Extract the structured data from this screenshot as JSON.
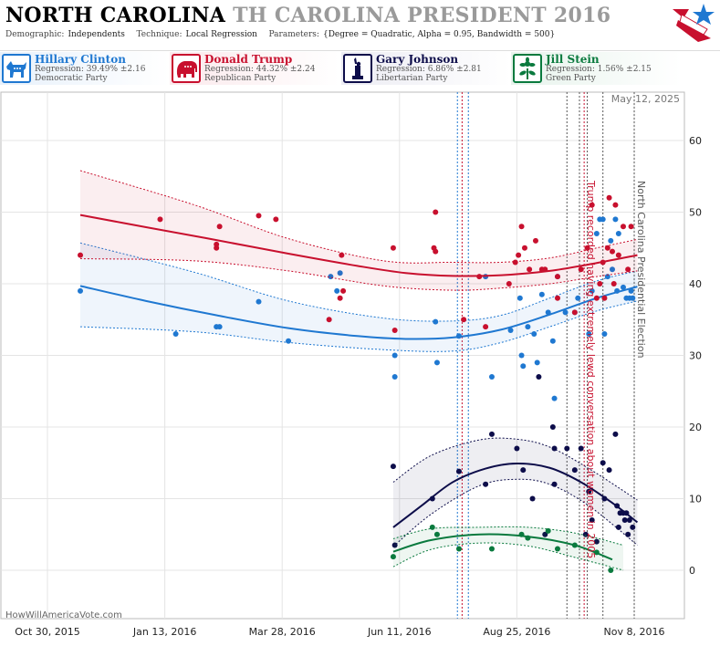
{
  "header": {
    "state": "NORTH CAROLINA",
    "subtitle": "TH CAROLINA PRESIDENT 2016",
    "demographic_label": "Demographic:",
    "demographic_value": "Independents",
    "technique_label": "Technique:",
    "technique_value": "Local Regression",
    "parameters_label": "Parameters:",
    "parameters_value": "{Degree = Quadratic, Alpha = 0.95, Bandwidth = 500}"
  },
  "candidates": [
    {
      "name": "Hillary Clinton",
      "regression": "Regression: 39.49% ±2.16",
      "party": "Democratic Party",
      "color": "#1f78d1",
      "icon": "donkey-icon",
      "bg": "#e8f1fb"
    },
    {
      "name": "Donald Trump",
      "regression": "Regression: 44.32% ±2.24",
      "party": "Republican Party",
      "color": "#c8102e",
      "icon": "elephant-icon",
      "bg": "#fbe9ec"
    },
    {
      "name": "Gary Johnson",
      "regression": "Regression: 6.86% ±2.81",
      "party": "Libertarian Party",
      "color": "#0d0d4a",
      "icon": "liberty-icon",
      "bg": "#ececf3"
    },
    {
      "name": "Jill Stein",
      "regression": "Regression: 1.56% ±2.15",
      "party": "Green Party",
      "color": "#0a7a3e",
      "icon": "flower-icon",
      "bg": "#e7f3ec"
    }
  ],
  "chart_data": {
    "type": "scatter",
    "date_label": "May 12, 2025",
    "watermark": "HowWillAmericaVote.com",
    "x_ticks": [
      "Oct 30, 2015",
      "Jan 13, 2016",
      "Mar 28, 2016",
      "Jun 11, 2016",
      "Aug 25, 2016",
      "Nov 8, 2016"
    ],
    "x_tick_dates": [
      "2015-10-30",
      "2016-01-13",
      "2016-03-28",
      "2016-06-11",
      "2016-08-25",
      "2016-11-08"
    ],
    "x_range": [
      "2015-10-30",
      "2016-11-13"
    ],
    "ylim": [
      -5,
      65
    ],
    "y_ticks": [
      0,
      10,
      20,
      30,
      40,
      50,
      60
    ],
    "annotations": [
      {
        "date": "2016-10-07",
        "text": "Trump recorded having extremely lewd conversation about women in 2005",
        "color": "#c8102e"
      },
      {
        "date": "2016-11-08",
        "text": "North Carolina Presidential Election",
        "color": "#555555"
      }
    ],
    "event_lines": [
      {
        "date": "2016-07-18",
        "color": "#1f78d1"
      },
      {
        "date": "2016-07-21",
        "color": "#c8102e"
      },
      {
        "date": "2016-07-25",
        "color": "#1f78d1"
      },
      {
        "date": "2016-09-26",
        "color": "#555555"
      },
      {
        "date": "2016-10-04",
        "color": "#555555"
      },
      {
        "date": "2016-10-07",
        "color": "#c8102e"
      },
      {
        "date": "2016-10-09",
        "color": "#555555"
      },
      {
        "date": "2016-10-19",
        "color": "#555555"
      },
      {
        "date": "2016-11-08",
        "color": "#555555"
      }
    ],
    "series": [
      {
        "name": "Hillary Clinton",
        "color": "#1f78d1",
        "band": [
          [
            "2015-11-20",
            34,
            45.7
          ],
          [
            "2016-02-01",
            33.3,
            41.6
          ],
          [
            "2016-04-01",
            31.8,
            37.6
          ],
          [
            "2016-06-01",
            30.8,
            35.2
          ],
          [
            "2016-07-15",
            30.6,
            34.8
          ],
          [
            "2016-08-15",
            31.8,
            35.6
          ],
          [
            "2016-09-15",
            34.0,
            38.0
          ],
          [
            "2016-10-15",
            36.2,
            40.4
          ],
          [
            "2016-11-10",
            37.6,
            41.8
          ]
        ],
        "line": [
          [
            "2015-11-20",
            39.7
          ],
          [
            "2016-01-01",
            37.6
          ],
          [
            "2016-02-15",
            35.6
          ],
          [
            "2016-04-01",
            33.8
          ],
          [
            "2016-05-15",
            32.7
          ],
          [
            "2016-06-15",
            32.3
          ],
          [
            "2016-07-15",
            32.5
          ],
          [
            "2016-08-15",
            33.6
          ],
          [
            "2016-09-15",
            35.7
          ],
          [
            "2016-10-15",
            38.0
          ],
          [
            "2016-11-10",
            39.6
          ]
        ],
        "points": [
          [
            "2015-11-20",
            39
          ],
          [
            "2016-01-20",
            33
          ],
          [
            "2016-02-15",
            34
          ],
          [
            "2016-02-17",
            34
          ],
          [
            "2016-03-13",
            37.5
          ],
          [
            "2016-04-01",
            32
          ],
          [
            "2016-04-28",
            41
          ],
          [
            "2016-05-02",
            39
          ],
          [
            "2016-05-04",
            41.5
          ],
          [
            "2016-06-08",
            30
          ],
          [
            "2016-06-08",
            27
          ],
          [
            "2016-07-04",
            34.7
          ],
          [
            "2016-07-05",
            29
          ],
          [
            "2016-07-19",
            32.7
          ],
          [
            "2016-08-05",
            41
          ],
          [
            "2016-08-09",
            27
          ],
          [
            "2016-08-21",
            33.5
          ],
          [
            "2016-08-27",
            38
          ],
          [
            "2016-08-28",
            30
          ],
          [
            "2016-08-29",
            28.5
          ],
          [
            "2016-09-01",
            34
          ],
          [
            "2016-09-05",
            33
          ],
          [
            "2016-09-07",
            29
          ],
          [
            "2016-09-10",
            38.5
          ],
          [
            "2016-09-14",
            36
          ],
          [
            "2016-09-17",
            32
          ],
          [
            "2016-09-18",
            24
          ],
          [
            "2016-09-20",
            41
          ],
          [
            "2016-09-25",
            36
          ],
          [
            "2016-10-01",
            36
          ],
          [
            "2016-10-03",
            38
          ],
          [
            "2016-10-10",
            33
          ],
          [
            "2016-10-12",
            39
          ],
          [
            "2016-10-15",
            47
          ],
          [
            "2016-10-17",
            49
          ],
          [
            "2016-10-19",
            49
          ],
          [
            "2016-10-20",
            33
          ],
          [
            "2016-10-22",
            41
          ],
          [
            "2016-10-24",
            46
          ],
          [
            "2016-10-25",
            42
          ],
          [
            "2016-10-27",
            49
          ],
          [
            "2016-10-28",
            39
          ],
          [
            "2016-10-29",
            47
          ],
          [
            "2016-11-01",
            39.5
          ],
          [
            "2016-11-03",
            38
          ],
          [
            "2016-11-05",
            38
          ],
          [
            "2016-11-06",
            39
          ],
          [
            "2016-11-07",
            38
          ]
        ]
      },
      {
        "name": "Donald Trump",
        "color": "#c8102e",
        "band": [
          [
            "2015-11-20",
            43.5,
            55.8
          ],
          [
            "2016-02-01",
            43.2,
            51.0
          ],
          [
            "2016-04-01",
            41.8,
            46.3
          ],
          [
            "2016-06-01",
            39.7,
            43.2
          ],
          [
            "2016-07-15",
            39.1,
            43.0
          ],
          [
            "2016-08-15",
            39.4,
            43.0
          ],
          [
            "2016-09-15",
            40.0,
            43.6
          ],
          [
            "2016-10-15",
            41.0,
            45.0
          ],
          [
            "2016-11-10",
            41.8,
            46.2
          ]
        ],
        "line": [
          [
            "2015-11-20",
            49.6
          ],
          [
            "2016-01-01",
            47.9
          ],
          [
            "2016-02-15",
            46.1
          ],
          [
            "2016-04-01",
            44.2
          ],
          [
            "2016-05-15",
            42.5
          ],
          [
            "2016-06-15",
            41.5
          ],
          [
            "2016-07-15",
            41.1
          ],
          [
            "2016-08-15",
            41.2
          ],
          [
            "2016-09-15",
            41.8
          ],
          [
            "2016-10-15",
            42.9
          ],
          [
            "2016-11-10",
            44.0
          ]
        ],
        "points": [
          [
            "2015-11-20",
            44
          ],
          [
            "2016-01-10",
            49
          ],
          [
            "2016-02-15",
            45
          ],
          [
            "2016-02-17",
            48
          ],
          [
            "2016-02-15",
            45.5
          ],
          [
            "2016-03-13",
            49.5
          ],
          [
            "2016-03-24",
            49
          ],
          [
            "2016-04-27",
            35
          ],
          [
            "2016-05-04",
            38
          ],
          [
            "2016-05-05",
            44
          ],
          [
            "2016-05-06",
            39
          ],
          [
            "2016-06-07",
            45
          ],
          [
            "2016-06-08",
            33.5
          ],
          [
            "2016-07-03",
            45
          ],
          [
            "2016-07-04",
            44.5
          ],
          [
            "2016-07-04",
            50
          ],
          [
            "2016-07-22",
            35
          ],
          [
            "2016-08-01",
            41
          ],
          [
            "2016-08-05",
            34
          ],
          [
            "2016-08-20",
            40
          ],
          [
            "2016-08-24",
            43
          ],
          [
            "2016-08-26",
            44
          ],
          [
            "2016-08-28",
            48
          ],
          [
            "2016-08-30",
            45
          ],
          [
            "2016-09-02",
            42
          ],
          [
            "2016-09-06",
            46
          ],
          [
            "2016-09-10",
            42
          ],
          [
            "2016-09-12",
            42
          ],
          [
            "2016-09-20",
            38
          ],
          [
            "2016-09-20",
            41
          ],
          [
            "2016-10-01",
            36
          ],
          [
            "2016-10-05",
            42
          ],
          [
            "2016-10-09",
            45
          ],
          [
            "2016-10-12",
            51
          ],
          [
            "2016-10-15",
            38
          ],
          [
            "2016-10-17",
            40
          ],
          [
            "2016-10-19",
            43
          ],
          [
            "2016-10-20",
            38
          ],
          [
            "2016-10-22",
            45
          ],
          [
            "2016-10-23",
            52
          ],
          [
            "2016-10-25",
            44.5
          ],
          [
            "2016-10-26",
            40
          ],
          [
            "2016-10-27",
            51
          ],
          [
            "2016-10-29",
            44
          ],
          [
            "2016-11-01",
            48
          ],
          [
            "2016-11-04",
            42
          ],
          [
            "2016-11-06",
            48
          ]
        ]
      },
      {
        "name": "Gary Johnson",
        "color": "#0d0d4a",
        "band": [
          [
            "2016-06-07",
            3.3,
            12.3
          ],
          [
            "2016-07-01",
            7.8,
            16.0
          ],
          [
            "2016-08-01",
            11.8,
            18.2
          ],
          [
            "2016-08-25",
            12.7,
            18.3
          ],
          [
            "2016-09-15",
            12.0,
            17.2
          ],
          [
            "2016-10-10",
            9.0,
            14.2
          ],
          [
            "2016-11-10",
            3.5,
            9.8
          ]
        ],
        "line": [
          [
            "2016-06-07",
            6.0
          ],
          [
            "2016-06-25",
            9.0
          ],
          [
            "2016-07-15",
            12.3
          ],
          [
            "2016-08-05",
            14.2
          ],
          [
            "2016-08-25",
            14.9
          ],
          [
            "2016-09-15",
            14.3
          ],
          [
            "2016-10-05",
            12.3
          ],
          [
            "2016-10-25",
            9.4
          ],
          [
            "2016-11-10",
            6.7
          ]
        ],
        "points": [
          [
            "2016-06-07",
            14.5
          ],
          [
            "2016-06-08",
            3.5
          ],
          [
            "2016-07-02",
            10
          ],
          [
            "2016-07-19",
            13.8
          ],
          [
            "2016-08-05",
            12
          ],
          [
            "2016-08-09",
            19
          ],
          [
            "2016-08-25",
            17
          ],
          [
            "2016-08-29",
            14
          ],
          [
            "2016-09-04",
            10
          ],
          [
            "2016-09-08",
            27
          ],
          [
            "2016-09-12",
            5
          ],
          [
            "2016-09-17",
            20
          ],
          [
            "2016-09-18",
            12
          ],
          [
            "2016-09-18",
            17
          ],
          [
            "2016-09-26",
            17
          ],
          [
            "2016-10-01",
            14
          ],
          [
            "2016-10-05",
            17
          ],
          [
            "2016-10-08",
            5
          ],
          [
            "2016-10-10",
            11
          ],
          [
            "2016-10-12",
            7
          ],
          [
            "2016-10-15",
            4
          ],
          [
            "2016-10-19",
            15
          ],
          [
            "2016-10-20",
            10
          ],
          [
            "2016-10-23",
            14
          ],
          [
            "2016-10-27",
            19
          ],
          [
            "2016-10-28",
            9
          ],
          [
            "2016-10-29",
            6
          ],
          [
            "2016-10-30",
            8
          ],
          [
            "2016-11-01",
            8
          ],
          [
            "2016-11-02",
            7
          ],
          [
            "2016-11-03",
            8
          ],
          [
            "2016-11-04",
            5
          ],
          [
            "2016-11-05",
            7
          ],
          [
            "2016-11-07",
            6
          ]
        ],
        "points_count": 34
      },
      {
        "name": "Jill Stein",
        "color": "#0a7a3e",
        "band": [
          [
            "2016-06-07",
            0.5,
            4.4
          ],
          [
            "2016-07-01",
            2.9,
            5.8
          ],
          [
            "2016-08-01",
            3.8,
            6.0
          ],
          [
            "2016-09-01",
            3.4,
            6.0
          ],
          [
            "2016-10-01",
            1.8,
            5.2
          ],
          [
            "2016-11-01",
            0,
            3.5
          ]
        ],
        "line": [
          [
            "2016-06-07",
            2.6
          ],
          [
            "2016-07-01",
            4.2
          ],
          [
            "2016-08-01",
            5.0
          ],
          [
            "2016-09-01",
            4.7
          ],
          [
            "2016-10-01",
            3.5
          ],
          [
            "2016-10-25",
            1.5
          ]
        ],
        "points": [
          [
            "2016-06-07",
            1.9
          ],
          [
            "2016-07-02",
            6
          ],
          [
            "2016-07-05",
            5
          ],
          [
            "2016-07-19",
            3
          ],
          [
            "2016-08-09",
            3
          ],
          [
            "2016-08-28",
            5
          ],
          [
            "2016-09-01",
            4.5
          ],
          [
            "2016-09-14",
            5.5
          ],
          [
            "2016-09-20",
            3
          ],
          [
            "2016-10-01",
            3.5
          ],
          [
            "2016-10-15",
            2.5
          ],
          [
            "2016-10-24",
            0
          ]
        ]
      }
    ]
  }
}
